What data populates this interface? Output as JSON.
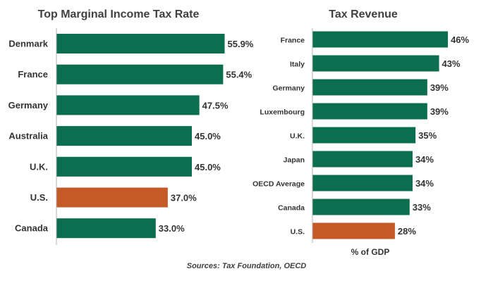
{
  "colors": {
    "default": "#0b6e4f",
    "highlight": "#c55a28",
    "axis": "#b0b0b0"
  },
  "chart_data": [
    {
      "type": "bar",
      "orientation": "horizontal",
      "title": "Top Marginal Income Tax Rate",
      "xlabel": "",
      "categories": [
        "Denmark",
        "France",
        "Germany",
        "Australia",
        "U.K.",
        "U.S.",
        "Canada"
      ],
      "values": [
        55.9,
        55.4,
        47.5,
        45.0,
        45.0,
        37.0,
        33.0
      ],
      "value_labels": [
        "55.9%",
        "55.4%",
        "47.5%",
        "45.0%",
        "45.0%",
        "37.0%",
        "33.0%"
      ],
      "highlight": [
        "U.S."
      ],
      "xlim": [
        0,
        75
      ],
      "grid": false
    },
    {
      "type": "bar",
      "orientation": "horizontal",
      "title": "Tax Revenue",
      "xlabel": "% of GDP",
      "categories": [
        "France",
        "Italy",
        "Germany",
        "Luxembourg",
        "U.K.",
        "Japan",
        "OECD Average",
        "Canada",
        "U.S."
      ],
      "values": [
        46,
        43,
        39,
        39,
        35,
        34,
        34,
        33,
        28
      ],
      "value_labels": [
        "46%",
        "43%",
        "39%",
        "39%",
        "35%",
        "34%",
        "34%",
        "33%",
        "28%"
      ],
      "highlight": [
        "U.S."
      ],
      "xlim": [
        0,
        57
      ],
      "grid": false
    }
  ],
  "source": "Sources: Tax Foundation, OECD"
}
